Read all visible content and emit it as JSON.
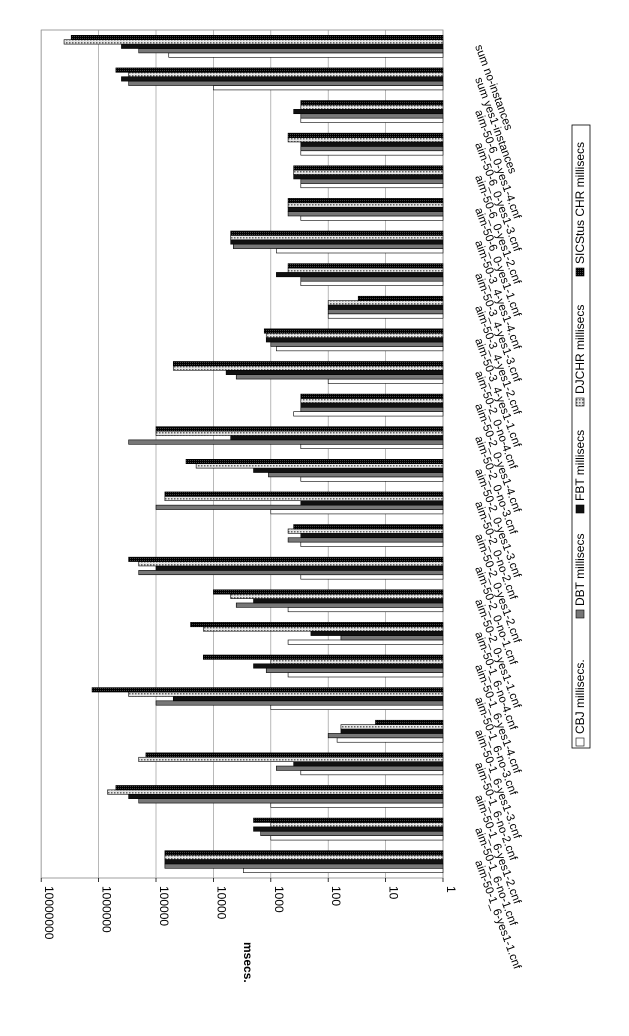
{
  "chart_data": {
    "type": "bar",
    "orientation": "rotated-horizontal",
    "scale": "log",
    "ylabel": "msecs.",
    "ylim": [
      1,
      10000000
    ],
    "yticks": [
      "1",
      "10",
      "100",
      "1000",
      "10000",
      "100000",
      "1000000",
      "10000000"
    ],
    "grid": true,
    "legend_position": "right",
    "categories": [
      "aim-50-1_6-yes1-1.cnf",
      "aim-50-1_6-no-1.cnf",
      "aim-50-1_6-yes1-2.cnf",
      "aim-50-1_6-no-2.cnf",
      "aim-50-1_6-yes1-3.cnf",
      "aim-50-1_6-no-3.cnf",
      "aim-50-1_6-yes1-4.cnf",
      "aim-50-1_6-no-4.cnf",
      "aim-50-2_0-yes1-1.cnf",
      "aim-50-2_0-no-1.cnf",
      "aim-50-2_0-yes1-2.cnf",
      "aim-50-2_0-no-2.cnf",
      "aim-50-2_0-yes1-3.cnf",
      "aim-50-2_0-no-3.cnf",
      "aim-50-2_0-yes1-4.cnf",
      "aim-50-2_0-no-4.cnf",
      "aim-50-3_4-yes1-1.cnf",
      "aim-50-3_4-yes1-2.cnf",
      "aim-50-3_4-yes1-3.cnf",
      "aim-50-3_4-yes1-4.cnf",
      "aim-50-6_0-yes1-1.cnf",
      "aim-50-6_0-yes1-2.cnf",
      "aim-50-6_0-yes1-3.cnf",
      "aim-50-6_0-yes1-4.cnf",
      "sum yes1-instances",
      "sum no-instances"
    ],
    "series": [
      {
        "name": "CBJ millisecs.",
        "color": "#ffffff",
        "pattern": "plain",
        "values": [
          3000,
          1000,
          1000,
          300,
          70,
          1000,
          500,
          500,
          500,
          300,
          300,
          1000,
          300,
          300,
          400,
          100,
          800,
          100,
          300,
          800,
          300,
          300,
          300,
          300,
          10000,
          60000
        ]
      },
      {
        "name": "DBT millisecs",
        "color": "#777777",
        "pattern": "plain",
        "values": [
          70000,
          1500,
          200000,
          800,
          100,
          100000,
          1200,
          60,
          4000,
          200000,
          500,
          100000,
          1100,
          300000,
          300,
          4000,
          1000,
          100,
          300,
          4500,
          500,
          300,
          300,
          300,
          300000,
          200000
        ]
      },
      {
        "name": "FBT millisecs",
        "color": "#111111",
        "pattern": "plain",
        "values": [
          70000,
          2000,
          300000,
          400,
          60,
          50000,
          2000,
          200,
          2000,
          100000,
          300,
          300,
          2000,
          5000,
          300,
          6000,
          1200,
          100,
          800,
          5000,
          500,
          400,
          300,
          400,
          400000,
          400000
        ]
      },
      {
        "name": "DJCHR millisecs",
        "color": "#aaaaaa",
        "pattern": "dots",
        "values": [
          70000,
          1000,
          700000,
          200000,
          60,
          300000,
          1000,
          15000,
          5000,
          200000,
          500,
          70000,
          20000,
          100000,
          300,
          50000,
          1200,
          100,
          500,
          5000,
          500,
          400,
          500,
          300,
          300000,
          4000000
        ]
      },
      {
        "name": "SICStus CHR millisecs",
        "color": "#000000",
        "pattern": "dense",
        "values": [
          70000,
          2000,
          500000,
          150000,
          15,
          1300000,
          15000,
          25000,
          10000,
          300000,
          400,
          70000,
          30000,
          100000,
          300,
          50000,
          1300,
          30,
          500,
          5000,
          500,
          400,
          500,
          300,
          500000,
          3000000
        ]
      }
    ]
  }
}
